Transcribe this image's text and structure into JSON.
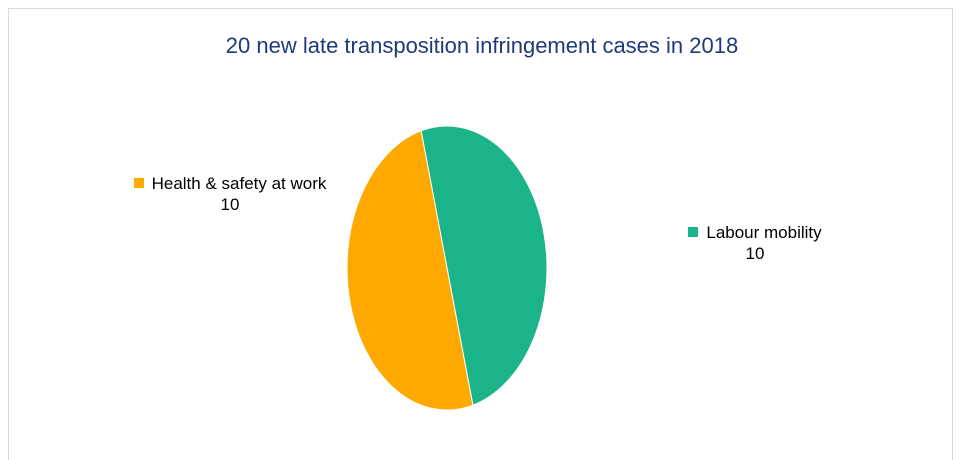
{
  "chart_data": {
    "type": "pie",
    "title": "20 new late transposition infringement cases in 2018",
    "categories": [
      "Labour mobility",
      "Health & safety at work"
    ],
    "values": [
      10,
      10
    ],
    "colors": [
      "#1ab38a",
      "#ffa800"
    ]
  }
}
